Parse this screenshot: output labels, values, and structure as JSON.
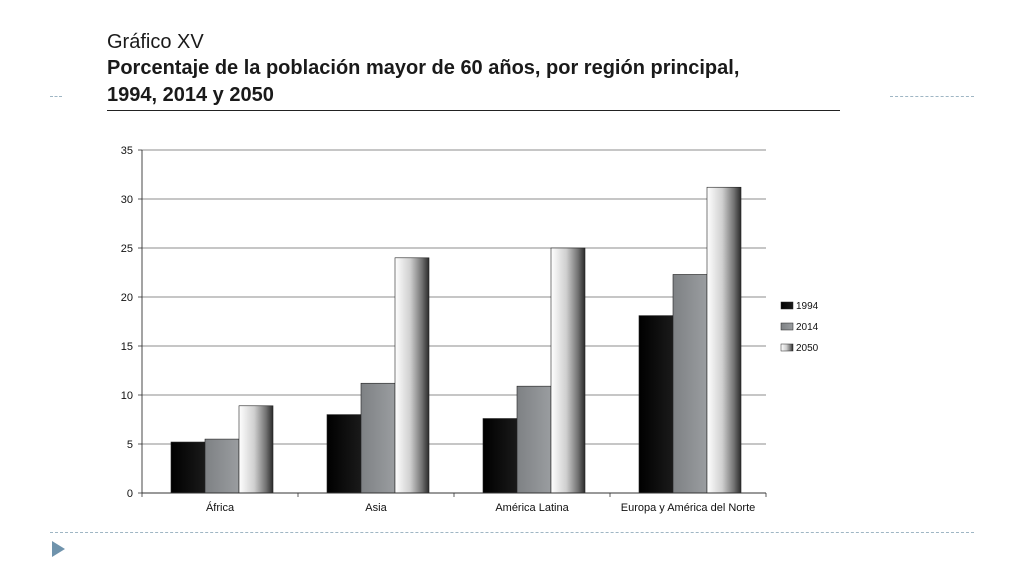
{
  "slide": {
    "supertitle": "Gráfico XV",
    "title_line1": "Porcentaje de la población mayor de 60 años, por región principal,",
    "title_line2": "1994, 2014 y 2050"
  },
  "colors": {
    "bullet": "#6f93ac",
    "dash": "#9fb6c4",
    "series_1994": "#0a0a0a",
    "series_2014": "#8a8d90",
    "series_2050": "#d9d9d9"
  },
  "icons": {
    "bullet": "triangle-bullet-icon"
  },
  "chart_data": {
    "type": "bar",
    "title": "",
    "xlabel": "",
    "ylabel": "",
    "ylim": [
      0,
      35
    ],
    "yticks": [
      0,
      5,
      10,
      15,
      20,
      25,
      30,
      35
    ],
    "grid": true,
    "legend_position": "right",
    "categories": [
      "África",
      "Asia",
      "América Latina",
      "Europa y América del Norte"
    ],
    "series": [
      {
        "name": "1994",
        "values": [
          5.2,
          8.0,
          7.6,
          18.1
        ]
      },
      {
        "name": "2014",
        "values": [
          5.5,
          11.2,
          10.9,
          22.3
        ]
      },
      {
        "name": "2050",
        "values": [
          8.9,
          24.0,
          25.0,
          31.2
        ]
      }
    ]
  }
}
